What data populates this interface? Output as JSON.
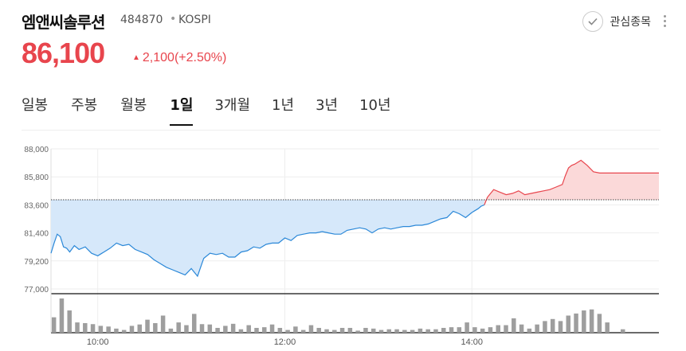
{
  "stock": {
    "name": "엠앤씨솔루션",
    "code": "484870",
    "separator": "•",
    "market": "KOSPI",
    "price": "86,100",
    "change": "2,100(+2.50%)",
    "direction": "up"
  },
  "watchlist": {
    "label": "관심종목"
  },
  "tabs": [
    {
      "label": "일봉",
      "active": false
    },
    {
      "label": "주봉",
      "active": false
    },
    {
      "label": "월봉",
      "active": false
    },
    {
      "label": "1일",
      "active": true
    },
    {
      "label": "3개월",
      "active": false
    },
    {
      "label": "1년",
      "active": false
    },
    {
      "label": "3년",
      "active": false
    },
    {
      "label": "10년",
      "active": false
    }
  ],
  "colors": {
    "up": "#e8454d",
    "down": "#2b88d8",
    "up_fill": "#fbd9d9",
    "down_fill": "#d6e8fa",
    "volume": "#9e9e9e"
  },
  "chart_data": {
    "type": "line",
    "reference_price": 84000,
    "y_ticks": [
      "88,000",
      "85,800",
      "83,600",
      "81,400",
      "79,200",
      "77,000"
    ],
    "y_tick_values": [
      88000,
      85800,
      83600,
      81400,
      79200,
      77000
    ],
    "ylim": [
      77000,
      88000
    ],
    "x_ticks": [
      "10:00",
      "12:00",
      "14:00"
    ],
    "x_tick_minutes": [
      30,
      150,
      270
    ],
    "xlim_minutes": [
      0,
      390
    ],
    "series_price": {
      "t": [
        0,
        2,
        4,
        6,
        8,
        10,
        12,
        15,
        18,
        22,
        26,
        30,
        34,
        38,
        42,
        46,
        50,
        54,
        58,
        62,
        66,
        70,
        74,
        78,
        82,
        86,
        90,
        94,
        98,
        102,
        106,
        110,
        114,
        118,
        122,
        126,
        130,
        134,
        138,
        142,
        146,
        150,
        154,
        158,
        162,
        166,
        170,
        174,
        178,
        182,
        186,
        190,
        194,
        198,
        202,
        206,
        210,
        214,
        218,
        222,
        226,
        230,
        234,
        238,
        242,
        246,
        250,
        254,
        258,
        262,
        266,
        270,
        274,
        276,
        278,
        280,
        284,
        288,
        292,
        296,
        300,
        304,
        308,
        312,
        316,
        320,
        324,
        328,
        330,
        332,
        334,
        336,
        340,
        344,
        348,
        352,
        356,
        360,
        364,
        368,
        372,
        376,
        380,
        384,
        388,
        390
      ],
      "price": [
        79800,
        80600,
        81300,
        81100,
        80300,
        80200,
        79900,
        80400,
        80100,
        80300,
        79800,
        79600,
        79900,
        80200,
        80600,
        80400,
        80500,
        80100,
        79900,
        79700,
        79300,
        79000,
        78700,
        78500,
        78300,
        78100,
        78600,
        78000,
        79400,
        79800,
        79700,
        79800,
        79500,
        79500,
        79900,
        80000,
        80300,
        80200,
        80500,
        80600,
        80600,
        81000,
        80800,
        81200,
        81300,
        81400,
        81400,
        81500,
        81400,
        81300,
        81300,
        81600,
        81700,
        81800,
        81700,
        81400,
        81700,
        81800,
        81700,
        81800,
        81900,
        81900,
        82000,
        82000,
        82100,
        82300,
        82500,
        82600,
        83100,
        82900,
        82600,
        83000,
        83300,
        83500,
        83600,
        84200,
        84800,
        84600,
        84400,
        84500,
        84700,
        84400,
        84500,
        84600,
        84700,
        84800,
        85000,
        85200,
        85900,
        86500,
        86700,
        86800,
        87100,
        86700,
        86200,
        86100,
        86100,
        86100,
        86100,
        86100,
        86100,
        86100,
        86100,
        86100,
        86100,
        86100
      ]
    },
    "series_volume": {
      "t": [
        2,
        7,
        12,
        17,
        22,
        27,
        32,
        37,
        42,
        47,
        52,
        57,
        62,
        67,
        72,
        77,
        82,
        87,
        92,
        97,
        102,
        107,
        112,
        117,
        122,
        127,
        132,
        137,
        142,
        147,
        152,
        157,
        162,
        167,
        172,
        177,
        182,
        187,
        192,
        197,
        202,
        207,
        212,
        217,
        222,
        227,
        232,
        237,
        242,
        247,
        252,
        257,
        262,
        267,
        272,
        277,
        282,
        287,
        292,
        297,
        302,
        307,
        312,
        317,
        322,
        327,
        332,
        337,
        342,
        347,
        352,
        357,
        362,
        367,
        372,
        377
      ],
      "volume": [
        45,
        100,
        65,
        30,
        28,
        25,
        20,
        18,
        12,
        8,
        20,
        24,
        38,
        28,
        50,
        12,
        30,
        22,
        55,
        25,
        24,
        14,
        20,
        26,
        10,
        22,
        14,
        16,
        24,
        14,
        8,
        18,
        8,
        22,
        14,
        10,
        8,
        14,
        14,
        6,
        14,
        12,
        8,
        10,
        10,
        8,
        8,
        12,
        10,
        10,
        14,
        16,
        16,
        30,
        16,
        12,
        16,
        22,
        22,
        42,
        24,
        12,
        24,
        34,
        40,
        34,
        50,
        56,
        65,
        68,
        55,
        30,
        0,
        10,
        0,
        0
      ]
    }
  }
}
